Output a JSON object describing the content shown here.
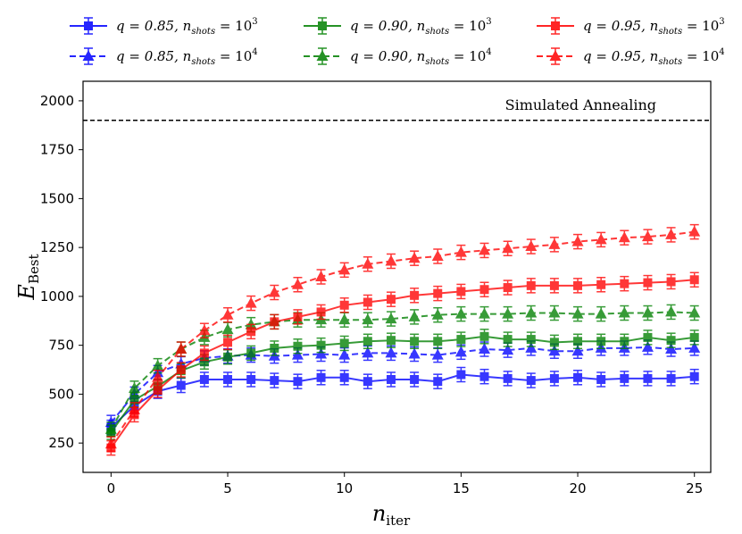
{
  "chart_data": {
    "type": "line",
    "title": "",
    "xlabel": "n",
    "xlabel_sub": "iter",
    "ylabel": "E",
    "ylabel_sub": "Best",
    "xlim": [
      -1.2,
      25.7
    ],
    "ylim": [
      100,
      2100
    ],
    "xticks": [
      0,
      5,
      10,
      15,
      20,
      25
    ],
    "yticks": [
      250,
      500,
      750,
      1000,
      1250,
      1500,
      1750,
      2000
    ],
    "grid": false,
    "legend_position": "top",
    "x": [
      0,
      1,
      2,
      3,
      4,
      5,
      6,
      7,
      8,
      9,
      10,
      11,
      12,
      13,
      14,
      15,
      16,
      17,
      18,
      19,
      20,
      21,
      22,
      23,
      24,
      25
    ],
    "reference_line": {
      "label": "Simulated Annealing",
      "y": 1900,
      "style": "dashed"
    },
    "series": [
      {
        "name": "q = 0.85, n_shots = 10^3",
        "q_label": "q = 0.85, ",
        "shots_label": "n",
        "shots_sub": "shots",
        "shots_eq": " = 10",
        "shots_exp": "3",
        "color": "#0000ff",
        "marker": "square",
        "dashed": false,
        "values": [
          330,
          440,
          515,
          545,
          575,
          575,
          575,
          570,
          565,
          585,
          585,
          565,
          575,
          575,
          565,
          600,
          590,
          580,
          570,
          580,
          585,
          575,
          580,
          580,
          580,
          590
        ]
      },
      {
        "name": "q = 0.85, n_shots = 10^4",
        "q_label": "q = 0.85, ",
        "shots_label": "n",
        "shots_sub": "shots",
        "shots_eq": " = 10",
        "shots_exp": "4",
        "color": "#0000ff",
        "marker": "triangle",
        "dashed": true,
        "values": [
          355,
          500,
          610,
          655,
          685,
          695,
          700,
          695,
          700,
          705,
          700,
          710,
          710,
          705,
          700,
          715,
          730,
          725,
          735,
          720,
          720,
          735,
          735,
          740,
          730,
          735
        ]
      },
      {
        "name": "q = 0.90, n_shots = 10^3",
        "q_label": "q = 0.90, ",
        "shots_label": "n",
        "shots_sub": "shots",
        "shots_eq": " = 10",
        "shots_exp": "3",
        "color": "#008000",
        "marker": "square",
        "dashed": false,
        "values": [
          305,
          470,
          540,
          620,
          665,
          690,
          710,
          735,
          745,
          750,
          760,
          770,
          775,
          770,
          770,
          780,
          795,
          780,
          780,
          765,
          770,
          770,
          770,
          790,
          775,
          790
        ]
      },
      {
        "name": "q = 0.90, n_shots = 10^4",
        "q_label": "q = 0.90, ",
        "shots_label": "n",
        "shots_sub": "shots",
        "shots_eq": " = 10",
        "shots_exp": "4",
        "color": "#008000",
        "marker": "triangle",
        "dashed": true,
        "values": [
          320,
          530,
          645,
          730,
          790,
          830,
          855,
          870,
          880,
          880,
          880,
          880,
          885,
          895,
          905,
          910,
          910,
          910,
          915,
          915,
          910,
          910,
          915,
          915,
          920,
          915
        ]
      },
      {
        "name": "q = 0.95, n_shots = 10^3",
        "q_label": "q = 0.95, ",
        "shots_label": "n",
        "shots_sub": "shots",
        "shots_eq": " = 10",
        "shots_exp": "3",
        "color": "#ff0000",
        "marker": "square",
        "dashed": false,
        "values": [
          225,
          395,
          520,
          625,
          710,
          765,
          820,
          870,
          895,
          920,
          955,
          970,
          985,
          1005,
          1015,
          1025,
          1035,
          1045,
          1055,
          1055,
          1055,
          1060,
          1065,
          1070,
          1075,
          1085
        ]
      },
      {
        "name": "q = 0.95, n_shots = 10^4",
        "q_label": "q = 0.95, ",
        "shots_label": "n",
        "shots_sub": "shots",
        "shots_eq": " = 10",
        "shots_exp": "4",
        "color": "#ff0000",
        "marker": "triangle",
        "dashed": true,
        "values": [
          245,
          420,
          585,
          730,
          825,
          905,
          965,
          1020,
          1060,
          1100,
          1135,
          1165,
          1180,
          1195,
          1205,
          1225,
          1235,
          1245,
          1255,
          1265,
          1280,
          1290,
          1300,
          1305,
          1315,
          1330
        ]
      }
    ]
  }
}
